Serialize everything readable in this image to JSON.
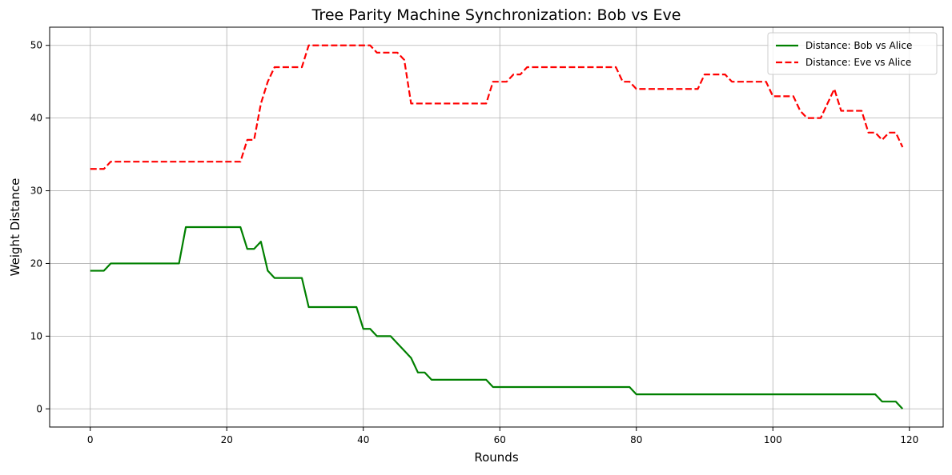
{
  "chart_data": {
    "type": "line",
    "title": "Tree Parity Machine Synchronization: Bob vs Eve",
    "xlabel": "Rounds",
    "ylabel": "Weight Distance",
    "xlim": [
      -5.95,
      124.95
    ],
    "ylim": [
      -2.5,
      52.5
    ],
    "xticks": [
      0,
      20,
      40,
      60,
      80,
      100,
      120
    ],
    "yticks": [
      0,
      10,
      20,
      30,
      40,
      50
    ],
    "grid": true,
    "legend_position": "top-right",
    "series": [
      {
        "name": "Distance: Bob vs Alice",
        "color": "#008000",
        "style": "solid",
        "x": [
          0,
          1,
          2,
          3,
          4,
          5,
          6,
          7,
          8,
          9,
          10,
          11,
          12,
          13,
          14,
          15,
          16,
          17,
          18,
          19,
          20,
          21,
          22,
          23,
          24,
          25,
          26,
          27,
          28,
          29,
          30,
          31,
          32,
          33,
          34,
          35,
          36,
          37,
          38,
          39,
          40,
          41,
          42,
          43,
          44,
          45,
          46,
          47,
          48,
          49,
          50,
          51,
          52,
          53,
          54,
          55,
          56,
          57,
          58,
          59,
          60,
          61,
          62,
          63,
          64,
          65,
          66,
          67,
          68,
          69,
          70,
          71,
          72,
          73,
          74,
          75,
          76,
          77,
          78,
          79,
          80,
          81,
          82,
          83,
          84,
          85,
          86,
          87,
          88,
          89,
          90,
          91,
          92,
          93,
          94,
          95,
          96,
          97,
          98,
          99,
          100,
          101,
          102,
          103,
          104,
          105,
          106,
          107,
          108,
          109,
          110,
          111,
          112,
          113,
          114,
          115,
          116,
          117,
          118,
          119
        ],
        "values": [
          19,
          19,
          19,
          20,
          20,
          20,
          20,
          20,
          20,
          20,
          20,
          20,
          20,
          20,
          25,
          25,
          25,
          25,
          25,
          25,
          25,
          25,
          25,
          22,
          22,
          23,
          19,
          18,
          18,
          18,
          18,
          18,
          14,
          14,
          14,
          14,
          14,
          14,
          14,
          14,
          11,
          11,
          10,
          10,
          10,
          9,
          8,
          7,
          5,
          5,
          4,
          4,
          4,
          4,
          4,
          4,
          4,
          4,
          4,
          3,
          3,
          3,
          3,
          3,
          3,
          3,
          3,
          3,
          3,
          3,
          3,
          3,
          3,
          3,
          3,
          3,
          3,
          3,
          3,
          3,
          2,
          2,
          2,
          2,
          2,
          2,
          2,
          2,
          2,
          2,
          2,
          2,
          2,
          2,
          2,
          2,
          2,
          2,
          2,
          2,
          2,
          2,
          2,
          2,
          2,
          2,
          2,
          2,
          2,
          2,
          2,
          2,
          2,
          2,
          2,
          2,
          1,
          1,
          1,
          0
        ]
      },
      {
        "name": "Distance: Eve vs Alice",
        "color": "#ff0000",
        "style": "dashed",
        "x": [
          0,
          1,
          2,
          3,
          4,
          5,
          6,
          7,
          8,
          9,
          10,
          11,
          12,
          13,
          14,
          15,
          16,
          17,
          18,
          19,
          20,
          21,
          22,
          23,
          24,
          25,
          26,
          27,
          28,
          29,
          30,
          31,
          32,
          33,
          34,
          35,
          36,
          37,
          38,
          39,
          40,
          41,
          42,
          43,
          44,
          45,
          46,
          47,
          48,
          49,
          50,
          51,
          52,
          53,
          54,
          55,
          56,
          57,
          58,
          59,
          60,
          61,
          62,
          63,
          64,
          65,
          66,
          67,
          68,
          69,
          70,
          71,
          72,
          73,
          74,
          75,
          76,
          77,
          78,
          79,
          80,
          81,
          82,
          83,
          84,
          85,
          86,
          87,
          88,
          89,
          90,
          91,
          92,
          93,
          94,
          95,
          96,
          97,
          98,
          99,
          100,
          101,
          102,
          103,
          104,
          105,
          106,
          107,
          108,
          109,
          110,
          111,
          112,
          113,
          114,
          115,
          116,
          117,
          118,
          119
        ],
        "values": [
          33,
          33,
          33,
          34,
          34,
          34,
          34,
          34,
          34,
          34,
          34,
          34,
          34,
          34,
          34,
          34,
          34,
          34,
          34,
          34,
          34,
          34,
          34,
          37,
          37,
          42,
          45,
          47,
          47,
          47,
          47,
          47,
          50,
          50,
          50,
          50,
          50,
          50,
          50,
          50,
          50,
          50,
          49,
          49,
          49,
          49,
          48,
          42,
          42,
          42,
          42,
          42,
          42,
          42,
          42,
          42,
          42,
          42,
          42,
          45,
          45,
          45,
          46,
          46,
          47,
          47,
          47,
          47,
          47,
          47,
          47,
          47,
          47,
          47,
          47,
          47,
          47,
          47,
          45,
          45,
          44,
          44,
          44,
          44,
          44,
          44,
          44,
          44,
          44,
          44,
          46,
          46,
          46,
          46,
          45,
          45,
          45,
          45,
          45,
          45,
          43,
          43,
          43,
          43,
          41,
          40,
          40,
          40,
          42,
          44,
          41,
          41,
          41,
          41,
          38,
          38,
          37,
          38,
          38,
          36
        ]
      }
    ]
  }
}
